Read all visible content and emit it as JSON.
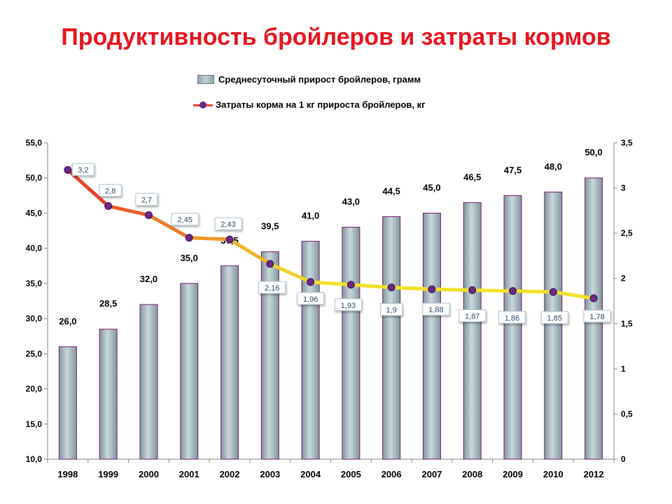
{
  "page": {
    "title": "Продуктивность бройлеров и затраты кормов"
  },
  "colors": {
    "title": "#e8141d",
    "bar_fill": "#a9bcc2",
    "bar_border": "#7a1c6e",
    "line_start": "#e8322b",
    "line_end": "#f2e12a",
    "marker": "#6a2a86"
  },
  "chart_data": {
    "type": "bar",
    "title": "",
    "xlabel": "",
    "ylabel": "",
    "categories": [
      "1998",
      "1999",
      "2000",
      "2001",
      "2002",
      "2003",
      "2004",
      "2005",
      "2006",
      "2007",
      "2008",
      "2009",
      "2010",
      "2012"
    ],
    "series": [
      {
        "name": "Среднесуточный прирост бройлеров, грамм",
        "type": "bar",
        "axis": "left",
        "values": [
          26.0,
          28.5,
          32.0,
          35.0,
          37.5,
          39.5,
          41.0,
          43.0,
          44.5,
          45.0,
          46.5,
          47.5,
          48.0,
          50.0
        ],
        "labels": [
          "26,0",
          "28,5",
          "32,0",
          "35,0",
          "37,5",
          "39,5",
          "41,0",
          "43,0",
          "44,5",
          "45,0",
          "46,5",
          "47,5",
          "48,0",
          "50,0"
        ]
      },
      {
        "name": "Затраты корма на 1 кг прироста бройлеров, кг",
        "type": "line",
        "axis": "right",
        "values": [
          3.2,
          2.8,
          2.7,
          2.45,
          2.43,
          2.16,
          1.96,
          1.93,
          1.9,
          1.88,
          1.87,
          1.86,
          1.85,
          1.78
        ],
        "labels": [
          "3,2",
          "2,8",
          "2,7",
          "2,45",
          "2,43",
          "2,16",
          "1,96",
          "1,93",
          "1,9",
          "1,88",
          "1,87",
          "1,86",
          "1,85",
          "1,78"
        ]
      }
    ],
    "ylim_left": [
      10.0,
      55.0
    ],
    "yticks_left": [
      "10,0",
      "15,0",
      "20,0",
      "25,0",
      "30,0",
      "35,0",
      "40,0",
      "45,0",
      "50,0",
      "55,0"
    ],
    "ylim_right": [
      0,
      3.5
    ],
    "yticks_right": [
      "0",
      "0,5",
      "1",
      "1,5",
      "2",
      "2,5",
      "3",
      "3,5"
    ],
    "grid": false,
    "legend_position": "top"
  }
}
